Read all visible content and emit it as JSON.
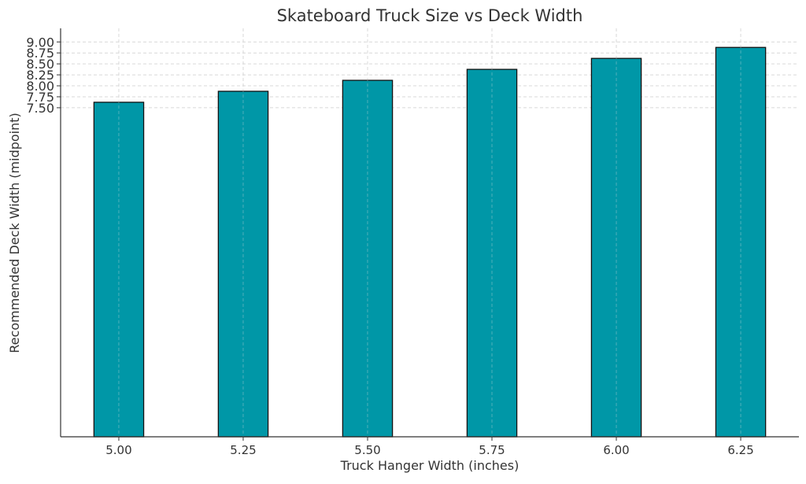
{
  "chart_data": {
    "type": "bar",
    "title": "Skateboard Truck Size vs Deck Width",
    "xlabel": "Truck Hanger Width (inches)",
    "ylabel": "Recommended Deck Width (midpoint)",
    "x": [
      5.0,
      5.25,
      5.5,
      5.75,
      6.0,
      6.25
    ],
    "categories": [
      "5.00",
      "5.25",
      "5.50",
      "5.75",
      "6.00",
      "6.25"
    ],
    "values": [
      7.625,
      7.875,
      8.125,
      8.375,
      8.625,
      8.875
    ],
    "bar_width": 0.1,
    "xlim": [
      4.883,
      6.367
    ],
    "ylim": [
      0,
      9.31
    ],
    "yticks": [
      7.5,
      7.75,
      8.0,
      8.25,
      8.5,
      8.75,
      9.0
    ],
    "ytick_labels": [
      "7.50",
      "7.75",
      "8.00",
      "8.25",
      "8.50",
      "8.75",
      "9.00"
    ],
    "grid": true,
    "colors": {
      "bar": "#0097a7",
      "edge": "#111111",
      "grid": "#cccccc",
      "text": "#333333"
    }
  }
}
